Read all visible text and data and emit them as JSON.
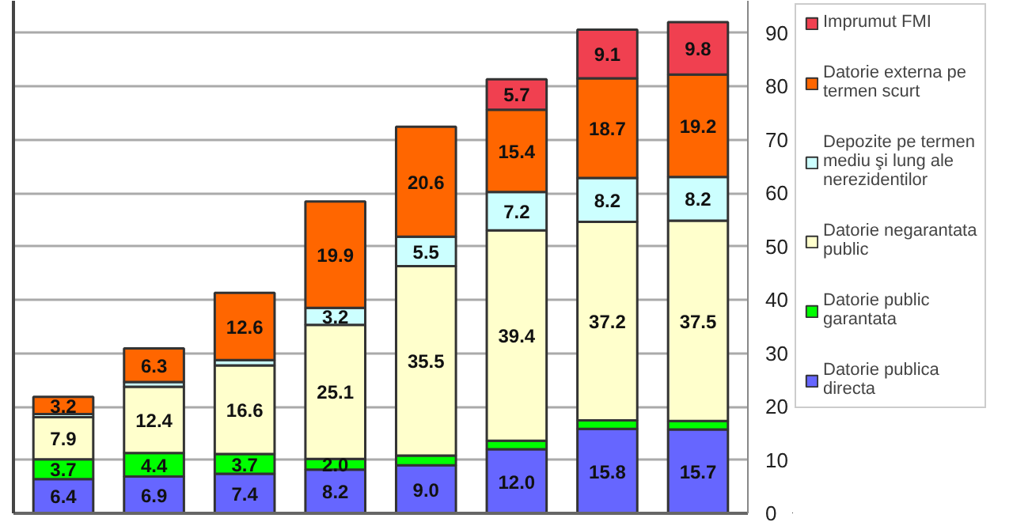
{
  "chart_data": {
    "type": "bar",
    "stacked": true,
    "categories": [
      null,
      null,
      null,
      null,
      null,
      null,
      null,
      null
    ],
    "series": [
      {
        "name": "Datorie publica directa",
        "color": "#6666ff",
        "values": [
          6.4,
          6.9,
          7.4,
          8.2,
          9.0,
          12.0,
          15.8,
          15.7
        ],
        "value_labels": [
          "6.4",
          "6.9",
          "7.4",
          "8.2",
          "9.0",
          "12.0",
          "15.8",
          "15.7"
        ]
      },
      {
        "name": "Datorie public garantata",
        "color": "#00ff00",
        "values": [
          3.7,
          4.4,
          3.7,
          2.0,
          1.8,
          1.6,
          1.6,
          1.6
        ],
        "value_labels": [
          "3.7",
          "4.4",
          "3.7",
          "2.0",
          null,
          null,
          null,
          null
        ]
      },
      {
        "name": "Datorie negarantata public",
        "color": "#ffffcc",
        "values": [
          7.9,
          12.4,
          16.6,
          25.1,
          35.5,
          39.4,
          37.2,
          37.5
        ],
        "value_labels": [
          "7.9",
          "12.4",
          "16.6",
          "25.1",
          "35.5",
          "39.4",
          "37.2",
          "37.5"
        ]
      },
      {
        "name": "Depozite pe termen mediu şi lung ale nerezidentilor",
        "color": "#ccffff",
        "values": [
          0.6,
          0.9,
          1.0,
          3.2,
          5.5,
          7.2,
          8.2,
          8.2
        ],
        "value_labels": [
          null,
          null,
          null,
          "3.2",
          "5.5",
          "7.2",
          "8.2",
          "8.2"
        ]
      },
      {
        "name": "Datorie externa pe termen scurt",
        "color": "#ff6600",
        "values": [
          3.2,
          6.3,
          12.6,
          19.9,
          20.6,
          15.4,
          18.7,
          19.2
        ],
        "value_labels": [
          "3.2",
          "6.3",
          "12.6",
          "19.9",
          "20.6",
          "15.4",
          "18.7",
          "19.2"
        ]
      },
      {
        "name": "Imprumut FMI",
        "color": "#f04050",
        "values": [
          null,
          null,
          null,
          null,
          null,
          5.7,
          9.1,
          9.8
        ],
        "value_labels": [
          null,
          null,
          null,
          null,
          null,
          "5.7",
          "9.1",
          "9.8"
        ]
      }
    ],
    "ylim": [
      0,
      96
    ],
    "yticks": [
      0,
      10,
      20,
      30,
      40,
      50,
      60,
      70,
      80,
      90
    ],
    "grid": "y",
    "legend": "right",
    "tick_labels": "y"
  }
}
